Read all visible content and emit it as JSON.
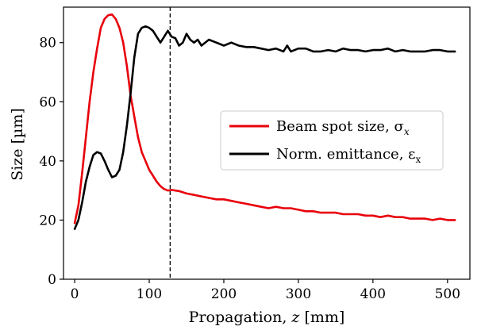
{
  "chart_data": {
    "type": "line",
    "xlabel": "Propagation, z [mm]",
    "xlabel_parts": {
      "prefix": "Propagation, ",
      "var": "z",
      "suffix": " [mm]"
    },
    "ylabel": "Size [µm]",
    "xlim": [
      -15,
      530
    ],
    "ylim": [
      0,
      92
    ],
    "xticks": [
      0,
      100,
      200,
      300,
      400,
      500
    ],
    "yticks": [
      0,
      20,
      40,
      60,
      80
    ],
    "grid": false,
    "legend_position": "center-right",
    "vline": {
      "x": 128,
      "style": "dashed",
      "color": "#000000"
    },
    "series": [
      {
        "name": "Beam spot size, σx",
        "name_parts": {
          "base": "Beam spot size, σ",
          "sub": "x"
        },
        "color": "#e8000b",
        "x": [
          0,
          5,
          10,
          15,
          20,
          25,
          30,
          35,
          40,
          45,
          50,
          55,
          60,
          65,
          70,
          75,
          80,
          85,
          90,
          95,
          100,
          105,
          110,
          115,
          120,
          125,
          130,
          135,
          140,
          150,
          160,
          170,
          180,
          190,
          200,
          210,
          220,
          230,
          240,
          250,
          260,
          270,
          280,
          290,
          300,
          310,
          320,
          330,
          340,
          350,
          360,
          370,
          380,
          390,
          400,
          410,
          420,
          430,
          440,
          450,
          460,
          470,
          480,
          490,
          500,
          510
        ],
        "y": [
          19,
          25,
          36,
          48,
          60,
          70,
          78,
          85,
          88,
          89.3,
          89.5,
          88,
          85,
          80,
          72,
          62,
          55,
          48,
          43,
          40,
          37,
          35,
          33,
          31.5,
          30.5,
          30,
          30.2,
          30,
          29.8,
          29,
          28.5,
          28,
          27.5,
          27,
          27,
          26.5,
          26,
          25.5,
          25,
          24.5,
          24,
          24.5,
          24,
          24,
          23.5,
          23,
          23,
          22.5,
          22.5,
          22.5,
          22,
          22,
          22,
          21.5,
          21.5,
          21,
          21.5,
          21,
          21,
          20.5,
          20.5,
          20.5,
          20,
          20.5,
          20,
          20
        ]
      },
      {
        "name": "Norm. emittance, εx",
        "name_parts": {
          "base": "Norm. emittance, ε",
          "sub": "x"
        },
        "color": "#000000",
        "x": [
          0,
          5,
          10,
          15,
          20,
          25,
          30,
          35,
          40,
          45,
          50,
          55,
          60,
          65,
          70,
          75,
          80,
          85,
          90,
          95,
          100,
          105,
          110,
          115,
          120,
          125,
          130,
          135,
          140,
          145,
          150,
          155,
          160,
          165,
          170,
          175,
          180,
          190,
          200,
          210,
          220,
          230,
          240,
          250,
          260,
          270,
          280,
          285,
          290,
          300,
          310,
          320,
          330,
          340,
          350,
          360,
          370,
          380,
          390,
          400,
          410,
          420,
          430,
          440,
          450,
          460,
          470,
          480,
          490,
          500,
          510
        ],
        "y": [
          17,
          20,
          26,
          33,
          38,
          42,
          43,
          42.5,
          40,
          37,
          34.5,
          35,
          37,
          43,
          52,
          63,
          75,
          83,
          85,
          85.5,
          85,
          84,
          82,
          80,
          82,
          84,
          82,
          81.5,
          79,
          80,
          83,
          81,
          80,
          81,
          79,
          80,
          81,
          80,
          79,
          80,
          79,
          78.5,
          78.5,
          78,
          77.5,
          78,
          77,
          79,
          77,
          78,
          78,
          77,
          77,
          77.5,
          77,
          78,
          77.5,
          77.5,
          77,
          77.5,
          77.5,
          78,
          77,
          77.5,
          77,
          77,
          77,
          77.5,
          77.5,
          77,
          77
        ]
      }
    ]
  }
}
